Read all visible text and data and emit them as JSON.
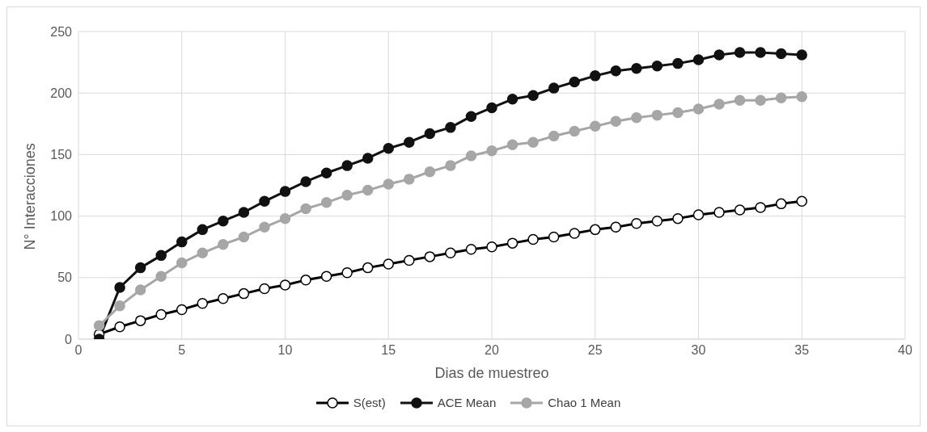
{
  "chart_data": {
    "type": "line",
    "xlabel": "Dias  de muestreo",
    "ylabel": "N° Interacciones",
    "x": [
      1,
      2,
      3,
      4,
      5,
      6,
      7,
      8,
      9,
      10,
      11,
      12,
      13,
      14,
      15,
      16,
      17,
      18,
      19,
      20,
      21,
      22,
      23,
      24,
      25,
      26,
      27,
      28,
      29,
      30,
      31,
      32,
      33,
      34,
      35
    ],
    "series": [
      {
        "name": "S(est)",
        "color": "#000000",
        "values": [
          4,
          10,
          15,
          20,
          24,
          29,
          33,
          37,
          41,
          44,
          48,
          51,
          54,
          58,
          61,
          64,
          67,
          70,
          73,
          75,
          78,
          81,
          83,
          86,
          89,
          91,
          94,
          96,
          98,
          101,
          103,
          105,
          107,
          110,
          112
        ]
      },
      {
        "name": "ACE Mean",
        "color": "#111111",
        "values": [
          0,
          42,
          58,
          68,
          79,
          89,
          96,
          103,
          112,
          120,
          128,
          135,
          141,
          147,
          155,
          160,
          167,
          172,
          181,
          188,
          195,
          198,
          204,
          209,
          214,
          218,
          220,
          222,
          224,
          227,
          231,
          233,
          233,
          232,
          231
        ]
      },
      {
        "name": "Chao 1 Mean",
        "color": "#a6a6a6",
        "values": [
          11,
          27,
          40,
          51,
          62,
          70,
          77,
          83,
          91,
          98,
          106,
          111,
          117,
          121,
          126,
          130,
          136,
          141,
          149,
          153,
          158,
          160,
          165,
          169,
          173,
          177,
          180,
          182,
          184,
          187,
          191,
          194,
          194,
          196,
          197
        ]
      }
    ],
    "xlim": [
      0,
      40
    ],
    "xticks": [
      0,
      5,
      10,
      15,
      20,
      25,
      30,
      35,
      40
    ],
    "ylim": [
      0,
      250
    ],
    "yticks": [
      0,
      50,
      100,
      150,
      200,
      250
    ],
    "grid": true,
    "legend": "bottom",
    "marker": "circle",
    "line_style": "solid"
  }
}
